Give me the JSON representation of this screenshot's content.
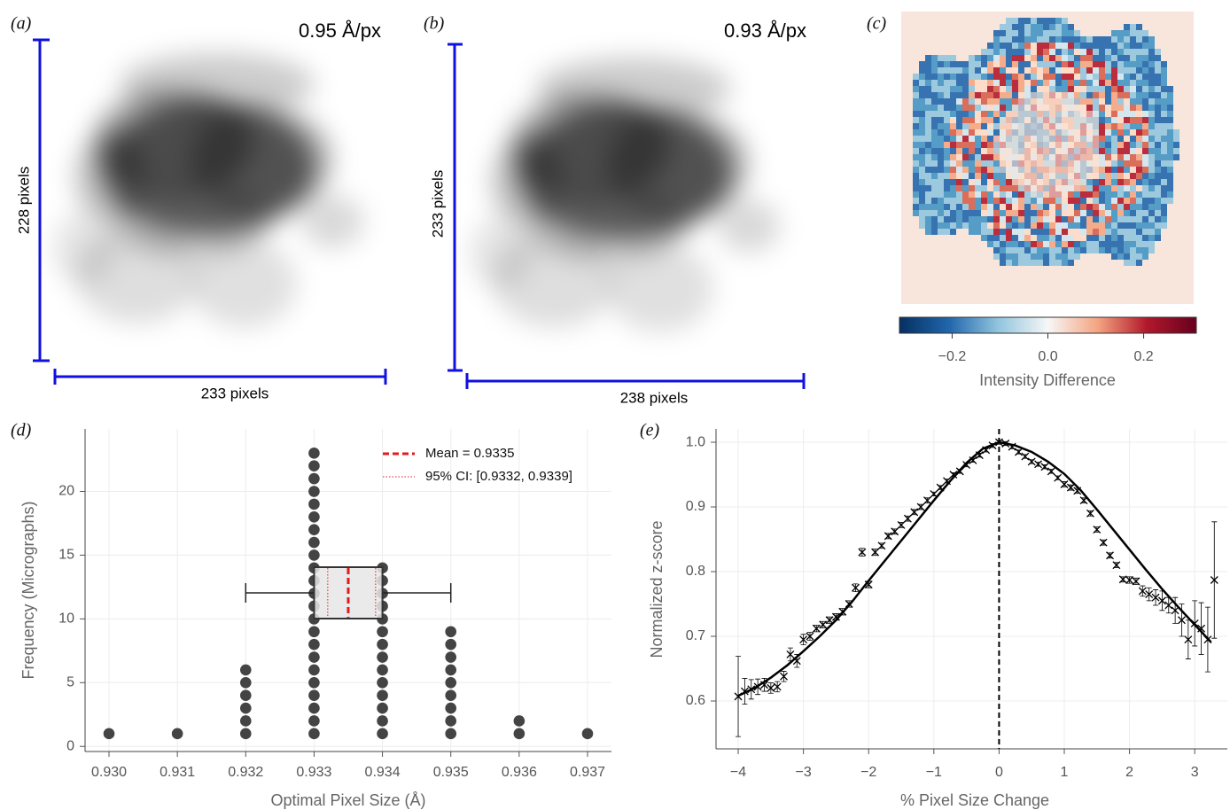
{
  "panels": [
    {
      "label": "(a)",
      "scale": "0.95 Å/px",
      "height": "228 pixels",
      "width": "233 pixels"
    },
    {
      "label": "(b)",
      "scale": "0.93 Å/px",
      "height": "233 pixels",
      "width": "238 pixels"
    },
    {
      "label": "(c)"
    }
  ],
  "chart_data": [
    {
      "type": "colorbar",
      "title": "Intensity Difference",
      "xlim": [
        -0.31,
        0.31
      ],
      "xticks": [
        {
          "value": -0.2,
          "label": "−0.2"
        },
        {
          "value": 0,
          "label": "0.0"
        },
        {
          "value": 0.2,
          "label": "0.2"
        }
      ],
      "colors": [
        "#053061",
        "#2166ac",
        "#92c5de",
        "#f7f7f7",
        "#f4a582",
        "#b2182b",
        "#67001f"
      ]
    },
    {
      "type": "dot-histogram",
      "label": "(d)",
      "xlabel": "Optimal Pixel Size (Å)",
      "ylabel": "Frequency (Micrographs)",
      "x": [
        0.93,
        0.931,
        0.932,
        0.933,
        0.934,
        0.935,
        0.936,
        0.937
      ],
      "values": [
        1,
        1,
        6,
        23,
        14,
        9,
        2,
        1
      ],
      "color": "#444444",
      "xlim": [
        0.92965,
        0.93735
      ],
      "ylim": [
        -0.4,
        24.9
      ],
      "xticks": [
        {
          "value": 0.93,
          "label": "0.930"
        },
        {
          "value": 0.931,
          "label": "0.931"
        },
        {
          "value": 0.932,
          "label": "0.932"
        },
        {
          "value": 0.933,
          "label": "0.933"
        },
        {
          "value": 0.934,
          "label": "0.934"
        },
        {
          "value": 0.935,
          "label": "0.935"
        },
        {
          "value": 0.936,
          "label": "0.936"
        },
        {
          "value": 0.937,
          "label": "0.937"
        }
      ],
      "yticks": [
        0,
        5,
        10,
        15,
        20
      ],
      "grid": true,
      "box": {
        "whisker_low": 0.932,
        "q1": 0.933,
        "q3": 0.934,
        "whisker_high": 0.935,
        "color": "#e6e6e6"
      },
      "mean": {
        "value": 0.9335,
        "label": "Mean = 0.9335",
        "color": "#e41a1c"
      },
      "ci": {
        "values": [
          0.9332,
          0.9339
        ],
        "label": "95% CI: [0.9332, 0.9339]",
        "color": "#e41a1c"
      },
      "legend": "upper right"
    },
    {
      "type": "scatter",
      "label": "(e)",
      "xlabel": "% Pixel Size Change",
      "ylabel": "Normalized z-score",
      "xlim": [
        -4.34,
        3.5
      ],
      "ylim": [
        0.526,
        1.0206
      ],
      "xticks": [
        {
          "value": -4,
          "label": "−4"
        },
        {
          "value": -3,
          "label": "−3"
        },
        {
          "value": -2,
          "label": "−2"
        },
        {
          "value": -1,
          "label": "−1"
        },
        0,
        1,
        2,
        3
      ],
      "yticks": [
        0.6,
        0.7,
        0.8,
        0.9,
        {
          "value": 1,
          "label": "1.0"
        }
      ],
      "grid": true,
      "vline": 0,
      "series": [
        {
          "type": "scatter",
          "color": "#000000",
          "x": [
            -4.0,
            -3.9,
            -3.8,
            -3.7,
            -3.6,
            -3.5,
            -3.4,
            -3.3,
            -3.2,
            -3.1,
            -3.0,
            -2.9,
            -2.8,
            -2.7,
            -2.6,
            -2.5,
            -2.4,
            -2.3,
            -2.2,
            -2.1,
            -2.0,
            -1.9,
            -1.8,
            -1.7,
            -1.6,
            -1.5,
            -1.4,
            -1.3,
            -1.2,
            -1.1,
            -1.0,
            -0.9,
            -0.8,
            -0.7,
            -0.6,
            -0.5,
            -0.4,
            -0.3,
            -0.2,
            -0.1,
            0.0,
            0.1,
            0.2,
            0.3,
            0.4,
            0.5,
            0.6,
            0.7,
            0.8,
            0.9,
            1.0,
            1.1,
            1.2,
            1.3,
            1.4,
            1.5,
            1.6,
            1.7,
            1.8,
            1.9,
            2.0,
            2.1,
            2.2,
            2.3,
            2.4,
            2.5,
            2.6,
            2.7,
            2.8,
            2.9,
            3.0,
            3.1,
            3.2,
            3.3
          ],
          "values": [
            0.607,
            0.615,
            0.618,
            0.622,
            0.625,
            0.62,
            0.622,
            0.638,
            0.672,
            0.662,
            0.695,
            0.7,
            0.712,
            0.718,
            0.725,
            0.73,
            0.738,
            0.75,
            0.775,
            0.83,
            0.78,
            0.83,
            0.84,
            0.855,
            0.862,
            0.872,
            0.882,
            0.892,
            0.9,
            0.91,
            0.92,
            0.93,
            0.94,
            0.95,
            0.955,
            0.965,
            0.972,
            0.98,
            0.988,
            0.995,
            1.0,
            0.998,
            0.993,
            0.985,
            0.978,
            0.97,
            0.966,
            0.962,
            0.955,
            0.945,
            0.935,
            0.93,
            0.925,
            0.91,
            0.89,
            0.865,
            0.845,
            0.825,
            0.81,
            0.788,
            0.787,
            0.785,
            0.77,
            0.765,
            0.76,
            0.755,
            0.748,
            0.74,
            0.725,
            0.695,
            0.72,
            0.712,
            0.695,
            0.787
          ],
          "errors": [
            0.062,
            0.02,
            0.015,
            0.012,
            0.01,
            0.008,
            0.008,
            0.008,
            0.01,
            0.01,
            0.008,
            0.006,
            0.005,
            0.005,
            0.005,
            0.005,
            0.005,
            0.005,
            0.006,
            0.006,
            0.005,
            0.005,
            0.004,
            0.004,
            0.004,
            0.004,
            0.004,
            0.004,
            0.004,
            0.004,
            0.003,
            0.003,
            0.003,
            0.003,
            0.003,
            0.003,
            0.003,
            0.003,
            0.003,
            0.003,
            0.003,
            0.003,
            0.003,
            0.003,
            0.003,
            0.003,
            0.003,
            0.003,
            0.003,
            0.003,
            0.004,
            0.004,
            0.004,
            0.004,
            0.004,
            0.004,
            0.004,
            0.004,
            0.004,
            0.004,
            0.005,
            0.005,
            0.008,
            0.01,
            0.012,
            0.015,
            0.012,
            0.02,
            0.025,
            0.03,
            0.035,
            0.04,
            0.05,
            0.09
          ]
        },
        {
          "type": "line",
          "color": "#000000",
          "x": [
            -4,
            -3.75,
            -3.5,
            -3.25,
            -3,
            -2.75,
            -2.5,
            -2.25,
            -2,
            -1.75,
            -1.5,
            -1.25,
            -1,
            -0.75,
            -0.5,
            -0.25,
            0,
            0.25,
            0.5,
            0.75,
            1,
            1.25,
            1.5,
            1.75,
            2,
            2.25,
            2.5,
            2.75,
            3,
            3.25
          ],
          "values": [
            0.608,
            0.62,
            0.636,
            0.655,
            0.677,
            0.7,
            0.725,
            0.754,
            0.786,
            0.817,
            0.848,
            0.879,
            0.91,
            0.94,
            0.968,
            0.99,
            1.0,
            0.995,
            0.985,
            0.97,
            0.951,
            0.926,
            0.896,
            0.865,
            0.834,
            0.803,
            0.773,
            0.745,
            0.718,
            0.691
          ]
        }
      ]
    }
  ]
}
